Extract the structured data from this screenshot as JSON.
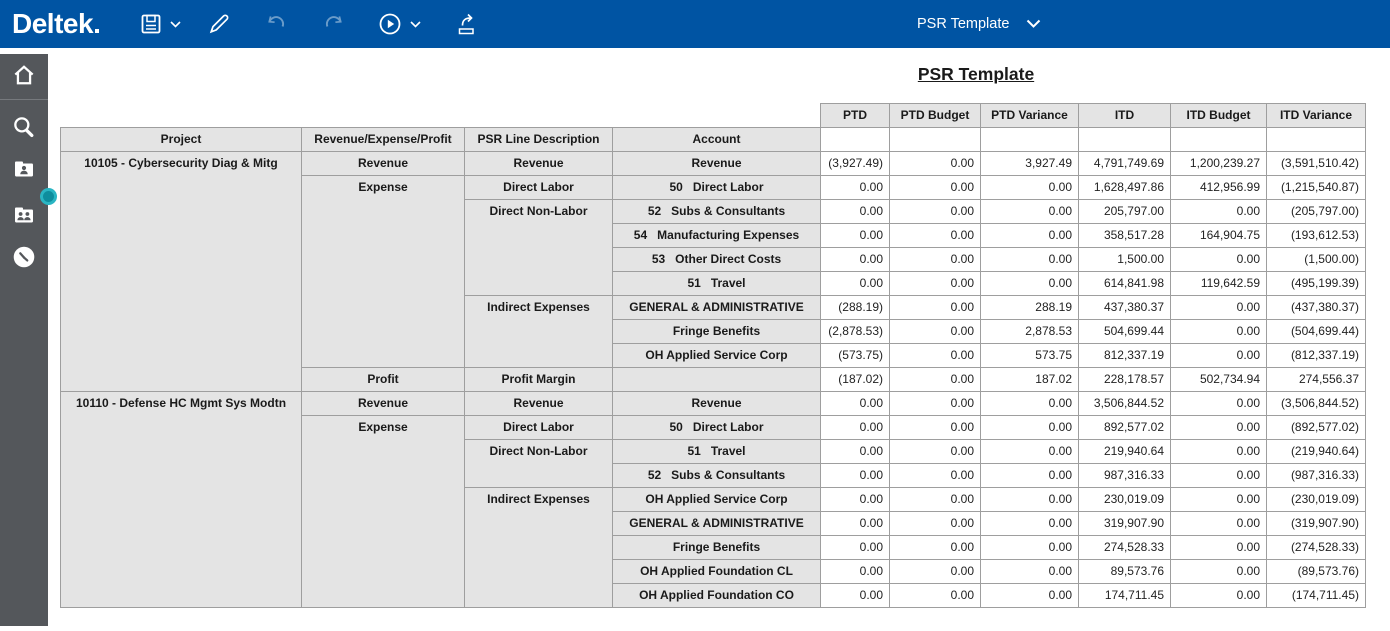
{
  "topbar": {
    "logo": "Deltek",
    "template_selector": "PSR Template",
    "icons": [
      "save-icon",
      "chevron-down-icon",
      "edit-pencil-icon",
      "undo-icon",
      "redo-icon",
      "run-icon",
      "chevron-down-icon",
      "export-icon"
    ]
  },
  "sidebar": {
    "icons": [
      "home-icon",
      "search-icon",
      "employee-folder-icon",
      "employee-group-icon",
      "clock-icon"
    ]
  },
  "colors": {
    "topbar_blue": "#0054a3",
    "sidebar_gray": "#54575b",
    "handle_teal": "#2ab5c3",
    "header_cell_gray": "#e4e4e4",
    "grid_border": "#9e9e9e"
  },
  "report": {
    "title": "PSR Template",
    "row_headers": [
      "Project",
      "Revenue/Expense/Profit",
      "PSR Line Description",
      "Account"
    ],
    "value_headers": [
      "PTD",
      "PTD Budget",
      "PTD Variance",
      "ITD",
      "ITD Budget",
      "ITD Variance"
    ],
    "projects": [
      {
        "name": "10105 - Cybersecurity Diag & Mitg",
        "groups": [
          {
            "type": "Revenue",
            "lines": [
              {
                "desc": "Revenue",
                "accounts": [
                  {
                    "account": "Revenue",
                    "values": [
                      "(3,927.49)",
                      "0.00",
                      "3,927.49",
                      "4,791,749.69",
                      "1,200,239.27",
                      "(3,591,510.42)"
                    ]
                  }
                ]
              }
            ]
          },
          {
            "type": "Expense",
            "lines": [
              {
                "desc": "Direct Labor",
                "accounts": [
                  {
                    "account": "50   Direct Labor",
                    "values": [
                      "0.00",
                      "0.00",
                      "0.00",
                      "1,628,497.86",
                      "412,956.99",
                      "(1,215,540.87)"
                    ]
                  }
                ]
              },
              {
                "desc": "Direct Non-Labor",
                "accounts": [
                  {
                    "account": "52   Subs & Consultants",
                    "values": [
                      "0.00",
                      "0.00",
                      "0.00",
                      "205,797.00",
                      "0.00",
                      "(205,797.00)"
                    ]
                  },
                  {
                    "account": "54   Manufacturing Expenses",
                    "values": [
                      "0.00",
                      "0.00",
                      "0.00",
                      "358,517.28",
                      "164,904.75",
                      "(193,612.53)"
                    ]
                  },
                  {
                    "account": "53   Other Direct Costs",
                    "values": [
                      "0.00",
                      "0.00",
                      "0.00",
                      "1,500.00",
                      "0.00",
                      "(1,500.00)"
                    ]
                  },
                  {
                    "account": "51   Travel",
                    "values": [
                      "0.00",
                      "0.00",
                      "0.00",
                      "614,841.98",
                      "119,642.59",
                      "(495,199.39)"
                    ]
                  }
                ]
              },
              {
                "desc": "Indirect Expenses",
                "accounts": [
                  {
                    "account": "GENERAL & ADMINISTRATIVE",
                    "values": [
                      "(288.19)",
                      "0.00",
                      "288.19",
                      "437,380.37",
                      "0.00",
                      "(437,380.37)"
                    ]
                  },
                  {
                    "account": "Fringe Benefits",
                    "values": [
                      "(2,878.53)",
                      "0.00",
                      "2,878.53",
                      "504,699.44",
                      "0.00",
                      "(504,699.44)"
                    ]
                  },
                  {
                    "account": "OH Applied Service Corp",
                    "values": [
                      "(573.75)",
                      "0.00",
                      "573.75",
                      "812,337.19",
                      "0.00",
                      "(812,337.19)"
                    ]
                  }
                ]
              }
            ]
          },
          {
            "type": "Profit",
            "lines": [
              {
                "desc": "Profit Margin",
                "accounts": [
                  {
                    "account": "",
                    "values": [
                      "(187.02)",
                      "0.00",
                      "187.02",
                      "228,178.57",
                      "502,734.94",
                      "274,556.37"
                    ]
                  }
                ]
              }
            ]
          }
        ]
      },
      {
        "name": "10110 - Defense HC Mgmt Sys Modtn",
        "groups": [
          {
            "type": "Revenue",
            "lines": [
              {
                "desc": "Revenue",
                "accounts": [
                  {
                    "account": "Revenue",
                    "values": [
                      "0.00",
                      "0.00",
                      "0.00",
                      "3,506,844.52",
                      "0.00",
                      "(3,506,844.52)"
                    ]
                  }
                ]
              }
            ]
          },
          {
            "type": "Expense",
            "lines": [
              {
                "desc": "Direct Labor",
                "accounts": [
                  {
                    "account": "50   Direct Labor",
                    "values": [
                      "0.00",
                      "0.00",
                      "0.00",
                      "892,577.02",
                      "0.00",
                      "(892,577.02)"
                    ]
                  }
                ]
              },
              {
                "desc": "Direct Non-Labor",
                "accounts": [
                  {
                    "account": "51   Travel",
                    "values": [
                      "0.00",
                      "0.00",
                      "0.00",
                      "219,940.64",
                      "0.00",
                      "(219,940.64)"
                    ]
                  },
                  {
                    "account": "52   Subs & Consultants",
                    "values": [
                      "0.00",
                      "0.00",
                      "0.00",
                      "987,316.33",
                      "0.00",
                      "(987,316.33)"
                    ]
                  }
                ]
              },
              {
                "desc": "Indirect Expenses",
                "accounts": [
                  {
                    "account": "OH Applied Service Corp",
                    "values": [
                      "0.00",
                      "0.00",
                      "0.00",
                      "230,019.09",
                      "0.00",
                      "(230,019.09)"
                    ]
                  },
                  {
                    "account": "GENERAL & ADMINISTRATIVE",
                    "values": [
                      "0.00",
                      "0.00",
                      "0.00",
                      "319,907.90",
                      "0.00",
                      "(319,907.90)"
                    ]
                  },
                  {
                    "account": "Fringe Benefits",
                    "values": [
                      "0.00",
                      "0.00",
                      "0.00",
                      "274,528.33",
                      "0.00",
                      "(274,528.33)"
                    ]
                  },
                  {
                    "account": "OH Applied Foundation CL",
                    "values": [
                      "0.00",
                      "0.00",
                      "0.00",
                      "89,573.76",
                      "0.00",
                      "(89,573.76)"
                    ]
                  },
                  {
                    "account": "OH Applied Foundation CO",
                    "values": [
                      "0.00",
                      "0.00",
                      "0.00",
                      "174,711.45",
                      "0.00",
                      "(174,711.45)"
                    ]
                  }
                ]
              }
            ]
          }
        ]
      }
    ]
  }
}
